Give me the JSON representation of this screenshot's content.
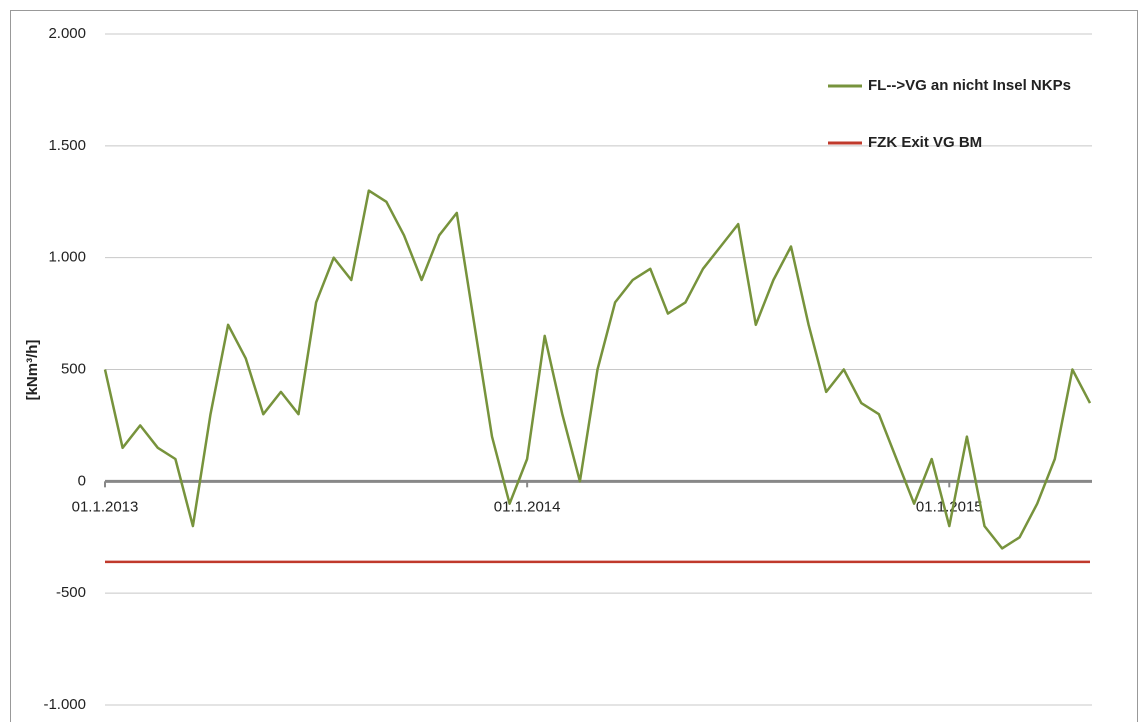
{
  "chart_data": {
    "type": "line",
    "y_label": "[kNm³/h]",
    "categories": [
      "01.1.2013",
      null,
      null,
      null,
      null,
      null,
      null,
      null,
      null,
      null,
      null,
      null,
      null,
      null,
      null,
      null,
      null,
      null,
      null,
      null,
      null,
      null,
      null,
      null,
      "01.1.2014",
      null,
      null,
      null,
      null,
      null,
      null,
      null,
      null,
      null,
      null,
      null,
      null,
      null,
      null,
      null,
      null,
      null,
      null,
      null,
      null,
      null,
      null,
      null,
      "01.1.2015",
      null,
      null,
      null,
      null,
      null,
      null,
      null,
      null
    ],
    "series": [
      {
        "name": "FL-->VG an nicht Insel NKPs",
        "color": "#77933c",
        "values": [
          500,
          150,
          250,
          150,
          100,
          -200,
          300,
          700,
          550,
          300,
          400,
          300,
          800,
          1000,
          900,
          1300,
          1250,
          1100,
          900,
          1100,
          1200,
          700,
          200,
          -100,
          100,
          650,
          300,
          0,
          500,
          800,
          900,
          950,
          750,
          800,
          950,
          1050,
          1150,
          700,
          900,
          1050,
          700,
          400,
          500,
          350,
          300,
          100,
          -100,
          100,
          -200,
          200,
          -200,
          -300,
          -250,
          -100,
          100,
          500,
          350
        ]
      },
      {
        "name": "FZK Exit VG BM",
        "color": "#c0392b",
        "values": [
          -360,
          -360,
          -360,
          -360,
          -360,
          -360,
          -360,
          -360,
          -360,
          -360,
          -360,
          -360,
          -360,
          -360,
          -360,
          -360,
          -360,
          -360,
          -360,
          -360,
          -360,
          -360,
          -360,
          -360,
          -360,
          -360,
          -360,
          -360,
          -360,
          -360,
          -360,
          -360,
          -360,
          -360,
          -360,
          -360,
          -360,
          -360,
          -360,
          -360,
          -360,
          -360,
          -360,
          -360,
          -360,
          -360,
          -360,
          -360,
          -360,
          -360,
          -360,
          -360,
          -360,
          -360,
          -360,
          -360,
          -360
        ]
      }
    ],
    "ylim": [
      -1000,
      2000
    ],
    "yticks": [
      {
        "value": -1000,
        "label": "-1.000"
      },
      -500,
      0,
      500,
      {
        "value": 1000,
        "label": "1.000"
      },
      {
        "value": 1500,
        "label": "1.500"
      },
      {
        "value": 2000,
        "label": "2.000"
      }
    ],
    "grid": true,
    "legend": "right"
  }
}
